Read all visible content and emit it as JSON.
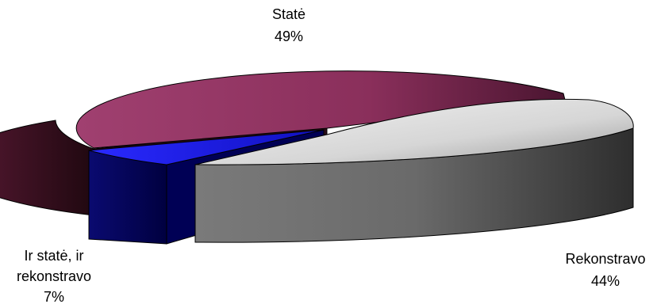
{
  "chart_data": {
    "type": "pie",
    "style": "3d-exploded",
    "title": "",
    "series": [
      {
        "name": "",
        "slices": [
          {
            "label": "Statė",
            "label_lines": [
              "Statė"
            ],
            "value": 49,
            "value_label": "49%",
            "color": "#9a3a66",
            "side_color": "#3a1020"
          },
          {
            "label": "Rekonstravo",
            "label_lines": [
              "Rekonstravo"
            ],
            "value": 44,
            "value_label": "44%",
            "color": "#d9d9d9",
            "side_color": "#6a6a6a"
          },
          {
            "label": "Ir statė, ir rekonstravo",
            "label_lines": [
              "Ir statė, ir",
              "rekonstravo"
            ],
            "value": 7,
            "value_label": "7%",
            "color": "#1f1fe6",
            "side_color": "#000066"
          }
        ]
      }
    ]
  }
}
